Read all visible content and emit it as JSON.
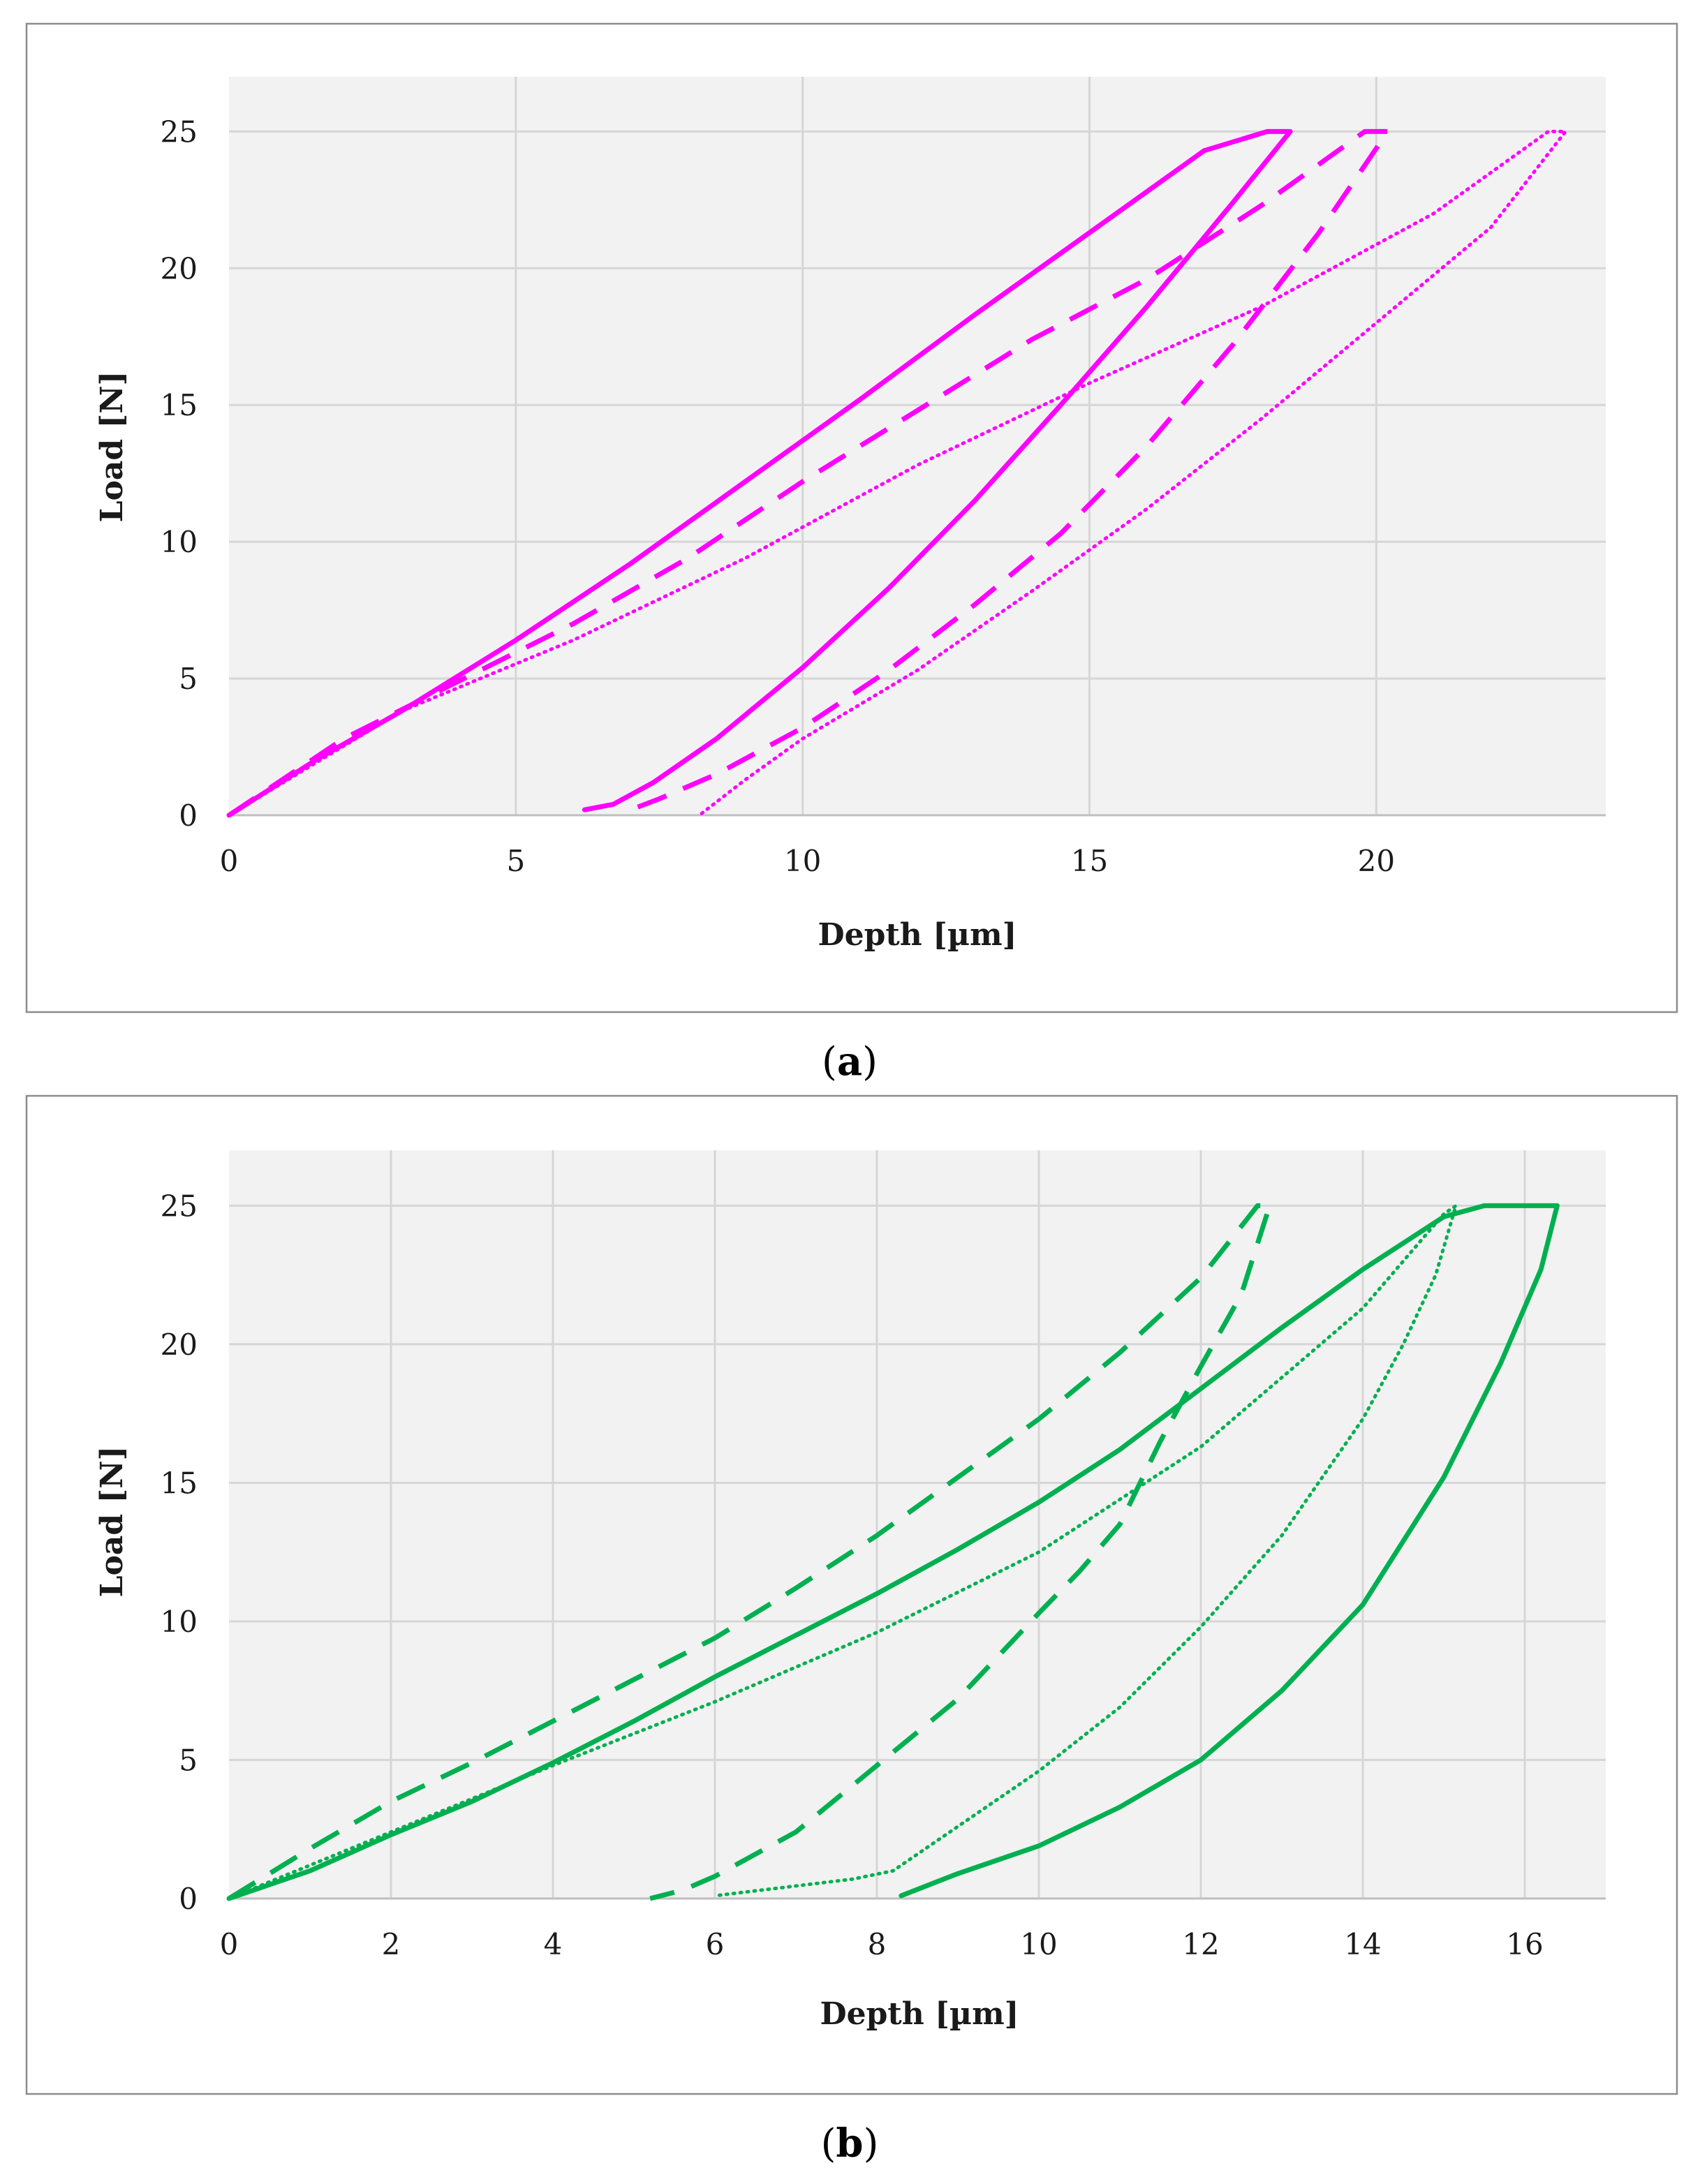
{
  "chart_data": [
    {
      "type": "line",
      "panel": "a",
      "caption": {
        "open": "(",
        "letter": "a",
        "close": ")"
      },
      "xlabel": "Depth [µm]",
      "ylabel": "Load [N]",
      "xlim": [
        0,
        24
      ],
      "ylim": [
        0,
        27
      ],
      "xticks": [
        0,
        5,
        10,
        15,
        20
      ],
      "yticks": [
        0,
        5,
        10,
        15,
        20,
        25
      ],
      "color": "#ff00ff",
      "series": [
        {
          "name": "solid",
          "style": "solid",
          "x": [
            0,
            1.5,
            3,
            5,
            7,
            9,
            11,
            13,
            15,
            17,
            18.1,
            18.5,
            17.5,
            16,
            14.5,
            13,
            11.5,
            10,
            8.5,
            7.4,
            6.7,
            6.2
          ],
          "y": [
            0,
            2,
            3.8,
            6.4,
            9.2,
            12.2,
            15.2,
            18.3,
            21.3,
            24.3,
            25,
            25,
            22.4,
            18.6,
            15,
            11.5,
            8.3,
            5.4,
            2.8,
            1.2,
            0.4,
            0.2
          ]
        },
        {
          "name": "dashed",
          "style": "dashed",
          "x": [
            0,
            2,
            4,
            6,
            8,
            10,
            12,
            14,
            16,
            18,
            19.8,
            20.2,
            19,
            17.5,
            16,
            14.5,
            13,
            11.5,
            10,
            8.5,
            7.5,
            7.0
          ],
          "y": [
            0,
            2.8,
            4.9,
            7.0,
            9.4,
            12.2,
            14.8,
            17.4,
            19.6,
            22.3,
            25,
            25,
            21.3,
            17.2,
            13.5,
            10.3,
            7.7,
            5.3,
            3.2,
            1.5,
            0.6,
            0.2
          ]
        },
        {
          "name": "dotted",
          "style": "dotted",
          "x": [
            0,
            3,
            6,
            9,
            12,
            15,
            18,
            21,
            23,
            23.3,
            22,
            20,
            18,
            16,
            14,
            12,
            10,
            9,
            8.2
          ],
          "y": [
            0,
            3.8,
            6.4,
            9.4,
            12.8,
            15.8,
            18.6,
            22,
            25,
            25,
            21.5,
            18,
            14.5,
            11.2,
            8.2,
            5.3,
            2.8,
            1.3,
            0
          ]
        }
      ]
    },
    {
      "type": "line",
      "panel": "b",
      "caption": {
        "open": "(",
        "letter": "b",
        "close": ")"
      },
      "xlabel": "Depth [µm]",
      "ylabel": "Load [N]",
      "xlim": [
        0,
        17
      ],
      "ylim": [
        0,
        27
      ],
      "xticks": [
        0,
        2,
        4,
        6,
        8,
        10,
        12,
        14,
        16
      ],
      "yticks": [
        0,
        5,
        10,
        15,
        20,
        25
      ],
      "color": "#00b050",
      "series": [
        {
          "name": "solid",
          "style": "solid",
          "x": [
            0,
            1,
            2,
            3,
            4,
            5,
            6,
            7,
            8,
            9,
            10,
            11,
            12,
            13,
            14,
            15,
            15.5,
            16.4,
            16.2,
            15.7,
            15,
            14,
            13,
            12,
            11,
            10,
            9,
            8.3
          ],
          "y": [
            0,
            1,
            2.3,
            3.5,
            4.9,
            6.4,
            8.0,
            9.5,
            11.0,
            12.6,
            14.3,
            16.2,
            18.4,
            20.6,
            22.7,
            24.6,
            25,
            25,
            22.7,
            19.3,
            15.2,
            10.6,
            7.5,
            5.0,
            3.3,
            1.9,
            0.9,
            0.1
          ]
        },
        {
          "name": "dashed",
          "style": "dashed",
          "x": [
            0,
            1,
            2,
            3,
            4,
            5,
            6,
            7,
            8,
            9,
            10,
            11,
            12,
            12.7,
            12.85,
            12.5,
            12,
            11.5,
            11,
            10.5,
            10,
            9,
            8,
            7,
            6,
            5.6,
            5.2
          ],
          "y": [
            0,
            1.8,
            3.5,
            4.9,
            6.4,
            7.9,
            9.4,
            11.2,
            13.1,
            15.2,
            17.3,
            19.7,
            22.4,
            25,
            25,
            21.8,
            19.2,
            16.5,
            13.5,
            11.8,
            10.3,
            7.2,
            4.8,
            2.4,
            0.8,
            0.3,
            0
          ]
        },
        {
          "name": "dotted",
          "style": "dotted",
          "x": [
            0,
            2,
            4,
            6,
            8,
            10,
            12,
            14,
            15,
            15.15,
            14.9,
            14.5,
            14,
            13,
            12,
            11,
            10,
            9,
            8.2,
            7.7,
            6.0
          ],
          "y": [
            0,
            2.4,
            4.8,
            7.1,
            9.6,
            12.5,
            16.3,
            21.3,
            24.7,
            25,
            22.5,
            20,
            17.3,
            13.1,
            9.8,
            6.9,
            4.6,
            2.6,
            1.0,
            0.7,
            0.1
          ]
        }
      ]
    }
  ]
}
